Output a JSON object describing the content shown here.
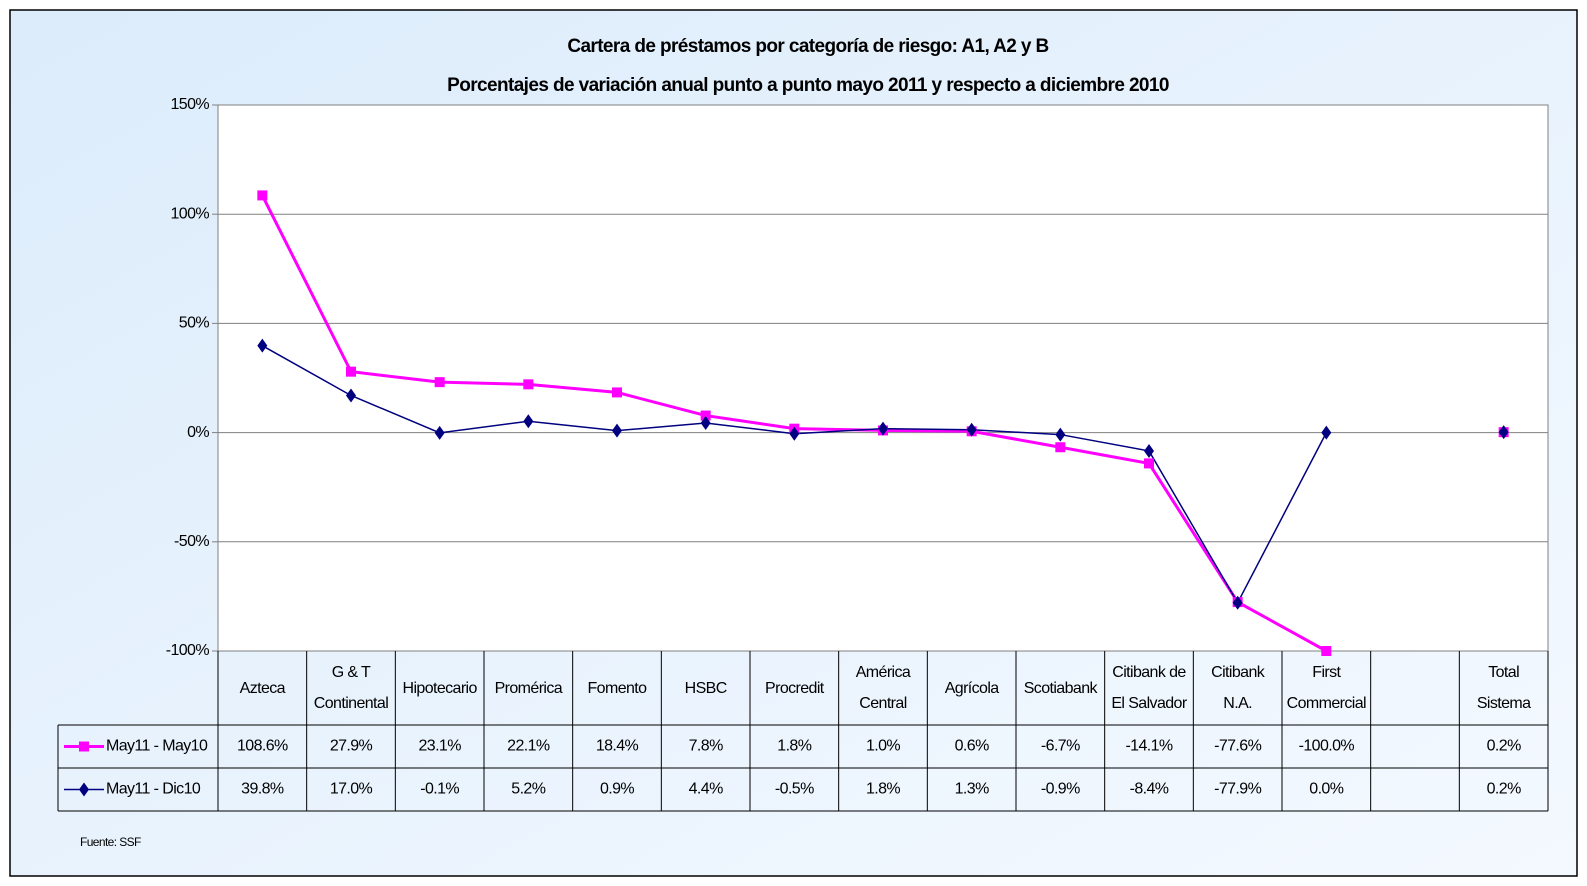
{
  "chart_data": {
    "type": "line",
    "title": "Cartera de préstamos por categoría de riesgo: A1, A2 y B",
    "subtitle": "Porcentajes de variación anual punto a punto mayo 2011 y respecto a diciembre 2010",
    "categories": [
      "Azteca",
      "G & T\nContinental",
      "Hipotecario",
      "Promérica",
      "Fomento",
      "HSBC",
      "Procredit",
      "América\nCentral",
      "Agrícola",
      "Scotiabank",
      "Citibank de\nEl Salvador",
      "Citibank\nN.A.",
      "First\nCommercial",
      null,
      "Total\nSistema"
    ],
    "series": [
      {
        "name": "May11 - May10",
        "color": "#ff00ff",
        "marker": "square",
        "values": [
          108.6,
          27.9,
          23.1,
          22.1,
          18.4,
          7.8,
          1.8,
          1.0,
          0.6,
          -6.7,
          -14.1,
          -77.6,
          -100.0,
          null,
          0.2
        ],
        "value_labels": [
          "108.6%",
          "27.9%",
          "23.1%",
          "22.1%",
          "18.4%",
          "7.8%",
          "1.8%",
          "1.0%",
          "0.6%",
          "-6.7%",
          "-14.1%",
          "-77.6%",
          "-100.0%",
          null,
          "0.2%"
        ]
      },
      {
        "name": "May11 - Dic10",
        "color": "#000080",
        "marker": "diamond",
        "values": [
          39.8,
          17.0,
          -0.1,
          5.2,
          0.9,
          4.4,
          -0.5,
          1.8,
          1.3,
          -0.9,
          -8.4,
          -77.9,
          0.0,
          null,
          0.2
        ],
        "value_labels": [
          "39.8%",
          "17.0%",
          "-0.1%",
          "5.2%",
          "0.9%",
          "4.4%",
          "-0.5%",
          "1.8%",
          "1.3%",
          "-0.9%",
          "-8.4%",
          "-77.9%",
          "0.0%",
          null,
          "0.2%"
        ]
      }
    ],
    "ylim": [
      -100,
      150
    ],
    "yticks": [
      {
        "value": -100,
        "label": "-100%"
      },
      {
        "value": -50,
        "label": "-50%"
      },
      {
        "value": 0,
        "label": "0%"
      },
      {
        "value": 50,
        "label": "50%"
      },
      {
        "value": 100,
        "label": "100%"
      },
      {
        "value": 150,
        "label": "150%"
      }
    ],
    "grid": true,
    "source": "Fuente: SSF"
  }
}
